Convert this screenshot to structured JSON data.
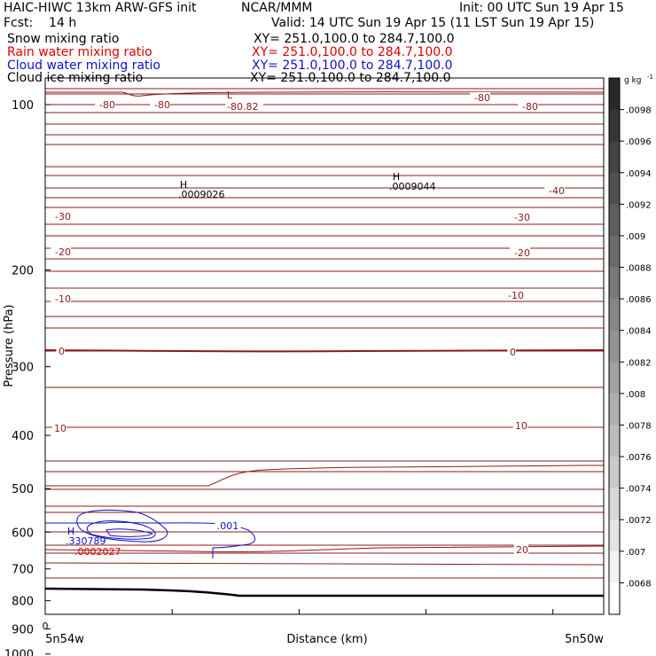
{
  "header": {
    "model": "HAIC-HIWC 13km ARW-GFS init",
    "org": "NCAR/MMM",
    "init": "Init: 00 UTC Sun 19 Apr 15",
    "fcst": "Fcst:    14 h",
    "valid": "Valid: 14 UTC Sun 19 Apr 15 (11 LST Sun 19 Apr 15)"
  },
  "legend": [
    {
      "label": "Snow mixing ratio",
      "xy": "XY= 251.0,100.0 to 284.7,100.0",
      "color": "#000000"
    },
    {
      "label": "Rain water mixing ratio",
      "xy": "XY= 251.0,100.0 to 284.7,100.0",
      "color": "#dd0000"
    },
    {
      "label": "Cloud water mixing ratio",
      "xy": "XY= 251.0,100.0 to 284.7,100.0",
      "color": "#1010c8"
    },
    {
      "label": "Cloud ice mixing ratio",
      "xy": "XY= 251.0,100.0 to 284.7,100.0",
      "color": "#000000"
    }
  ],
  "colors": {
    "temperature": "#8b1a1a",
    "cloud_water": "#1010c8",
    "rain": "#dd0000",
    "snow": "#000000",
    "ice": "#000000"
  },
  "chart_data": {
    "type": "contour-cross-section",
    "title": "",
    "xlabel": "Distance (km)",
    "ylabel": "Pressure (hPa)",
    "x_endpoints": [
      "5n54w",
      "5n50w"
    ],
    "x_origin_label": "0",
    "y_scale": "log-pressure",
    "ylim": [
      1050,
      50
    ],
    "y_ticks": [
      100,
      200,
      300,
      400,
      500,
      600,
      700,
      800,
      900,
      1000
    ],
    "colorbar": {
      "unit": "g kg",
      "unit_power": "-1",
      "labels": [
        ".0098",
        ".0096",
        ".0094",
        ".0092",
        ".009",
        ".0088",
        ".0086",
        ".0084",
        ".0082",
        ".008",
        ".0078",
        ".0076",
        ".0074",
        ".0072",
        ".007",
        ".0068"
      ]
    },
    "temperature_contours": [
      {
        "value": -80,
        "label": "-80"
      },
      {
        "value": -40,
        "label": "-40"
      },
      {
        "value": -30,
        "label": "-30"
      },
      {
        "value": -20,
        "label": "-20"
      },
      {
        "value": -10,
        "label": "-10"
      },
      {
        "value": 0,
        "label": "0"
      },
      {
        "value": 10,
        "label": "10"
      },
      {
        "value": 20,
        "label": "20"
      }
    ],
    "extrema": [
      {
        "kind": "L",
        "value": "-80.82",
        "color": "temperature"
      },
      {
        "kind": "H",
        "value": ".0009026",
        "color": "snow"
      },
      {
        "kind": "H",
        "value": ".0009044",
        "color": "snow"
      },
      {
        "kind": "H",
        "value": ".330789",
        "color": "cloud_water"
      },
      {
        "kind": "",
        "value": ".0002027",
        "color": "rain"
      }
    ],
    "cloud_water_contours": [
      {
        "value": 0.001,
        "label": ".001"
      }
    ]
  }
}
